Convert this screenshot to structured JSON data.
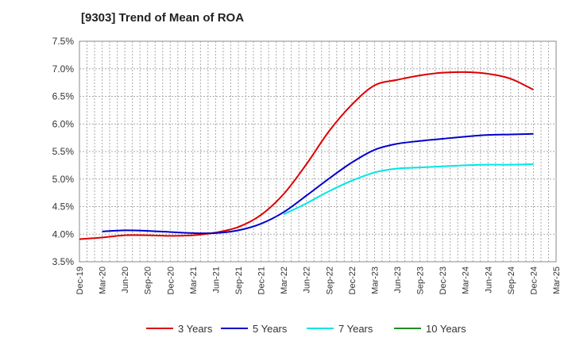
{
  "chart_data": {
    "type": "line",
    "title": "[9303]  Trend of Mean of ROA",
    "xlabel": "",
    "ylabel": "",
    "ylim": [
      3.5,
      7.5
    ],
    "yticks": [
      "3.5%",
      "4.0%",
      "4.5%",
      "5.0%",
      "5.5%",
      "6.0%",
      "6.5%",
      "7.0%",
      "7.5%"
    ],
    "x_ticks": [
      "Dec-19",
      "Mar-20",
      "Jun-20",
      "Sep-20",
      "Dec-20",
      "Mar-21",
      "Jun-21",
      "Sep-21",
      "Dec-21",
      "Mar-22",
      "Jun-22",
      "Sep-22",
      "Dec-22",
      "Mar-23",
      "Jun-23",
      "Sep-23",
      "Dec-23",
      "Mar-24",
      "Jun-24",
      "Sep-24",
      "Dec-24",
      "Mar-25"
    ],
    "grid": true,
    "legend_position": "bottom",
    "series": [
      {
        "name": "3 Years",
        "color": "#dd0000",
        "x": [
          "Dec-19",
          "Mar-20",
          "Jun-20",
          "Sep-20",
          "Dec-20",
          "Mar-21",
          "Jun-21",
          "Sep-21",
          "Dec-21",
          "Mar-22",
          "Jun-22",
          "Sep-22",
          "Dec-22",
          "Mar-23",
          "Jun-23",
          "Sep-23",
          "Dec-23",
          "Mar-24",
          "Jun-24",
          "Sep-24",
          "Dec-24"
        ],
        "values": [
          3.91,
          3.94,
          3.98,
          3.98,
          3.97,
          3.98,
          4.03,
          4.13,
          4.35,
          4.73,
          5.27,
          5.87,
          6.35,
          6.7,
          6.8,
          6.88,
          6.93,
          6.94,
          6.91,
          6.82,
          6.62
        ]
      },
      {
        "name": "5 Years",
        "color": "#0000cc",
        "x": [
          "Mar-20",
          "Jun-20",
          "Sep-20",
          "Dec-20",
          "Mar-21",
          "Jun-21",
          "Sep-21",
          "Dec-21",
          "Mar-22",
          "Jun-22",
          "Sep-22",
          "Dec-22",
          "Mar-23",
          "Jun-23",
          "Sep-23",
          "Dec-23",
          "Mar-24",
          "Jun-24",
          "Sep-24",
          "Dec-24"
        ],
        "values": [
          4.05,
          4.07,
          4.06,
          4.04,
          4.02,
          4.02,
          4.07,
          4.19,
          4.4,
          4.7,
          5.01,
          5.3,
          5.53,
          5.64,
          5.69,
          5.73,
          5.77,
          5.8,
          5.81,
          5.82
        ]
      },
      {
        "name": "7 Years",
        "color": "#00e5e5",
        "x": [
          "Mar-22",
          "Jun-22",
          "Sep-22",
          "Dec-22",
          "Mar-23",
          "Jun-23",
          "Sep-23",
          "Dec-23",
          "Mar-24",
          "Jun-24",
          "Sep-24",
          "Dec-24"
        ],
        "values": [
          4.36,
          4.56,
          4.78,
          4.97,
          5.12,
          5.19,
          5.21,
          5.23,
          5.25,
          5.26,
          5.26,
          5.27
        ]
      },
      {
        "name": "10 Years",
        "color": "#228b22",
        "x": [],
        "values": []
      }
    ]
  }
}
